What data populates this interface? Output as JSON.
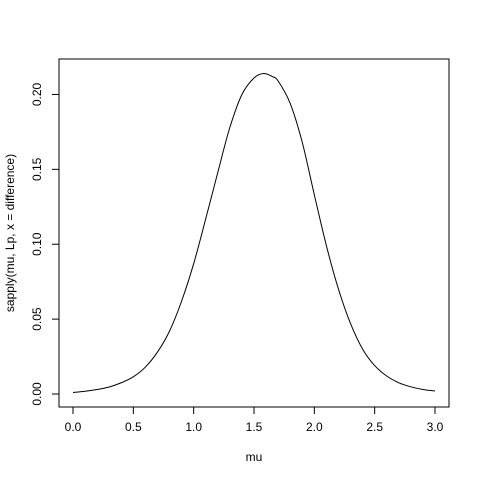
{
  "chart_data": {
    "type": "line",
    "title": "",
    "xlabel": "mu",
    "ylabel": "sapply(mu, Lp, x = difference)",
    "xlim": [
      0.0,
      3.0
    ],
    "ylim": [
      0.0,
      0.215
    ],
    "grid": false,
    "legend": "none",
    "x_ticks": [
      0.0,
      0.5,
      1.0,
      1.5,
      2.0,
      2.5,
      3.0
    ],
    "x_tick_labels": [
      "0.0",
      "0.5",
      "1.0",
      "1.5",
      "2.0",
      "2.5",
      "3.0"
    ],
    "y_ticks": [
      0.0,
      0.05,
      0.1,
      0.15,
      0.2
    ],
    "y_tick_labels": [
      "0.00",
      "0.05",
      "0.10",
      "0.15",
      "0.20"
    ],
    "series": [
      {
        "x": [
          0.0,
          0.1,
          0.2,
          0.3,
          0.4,
          0.5,
          0.6,
          0.7,
          0.8,
          0.9,
          1.0,
          1.1,
          1.2,
          1.3,
          1.4,
          1.5,
          1.58,
          1.65,
          1.7,
          1.8,
          1.9,
          2.0,
          2.1,
          2.2,
          2.3,
          2.4,
          2.5,
          2.6,
          2.7,
          2.8,
          2.9,
          3.0
        ],
        "y": [
          0.001,
          0.0018,
          0.003,
          0.0047,
          0.0075,
          0.0115,
          0.018,
          0.028,
          0.042,
          0.062,
          0.087,
          0.117,
          0.148,
          0.178,
          0.2,
          0.211,
          0.214,
          0.212,
          0.209,
          0.194,
          0.168,
          0.133,
          0.099,
          0.07,
          0.047,
          0.03,
          0.019,
          0.012,
          0.0075,
          0.0048,
          0.003,
          0.002
        ]
      }
    ],
    "line_color": "#000000"
  }
}
